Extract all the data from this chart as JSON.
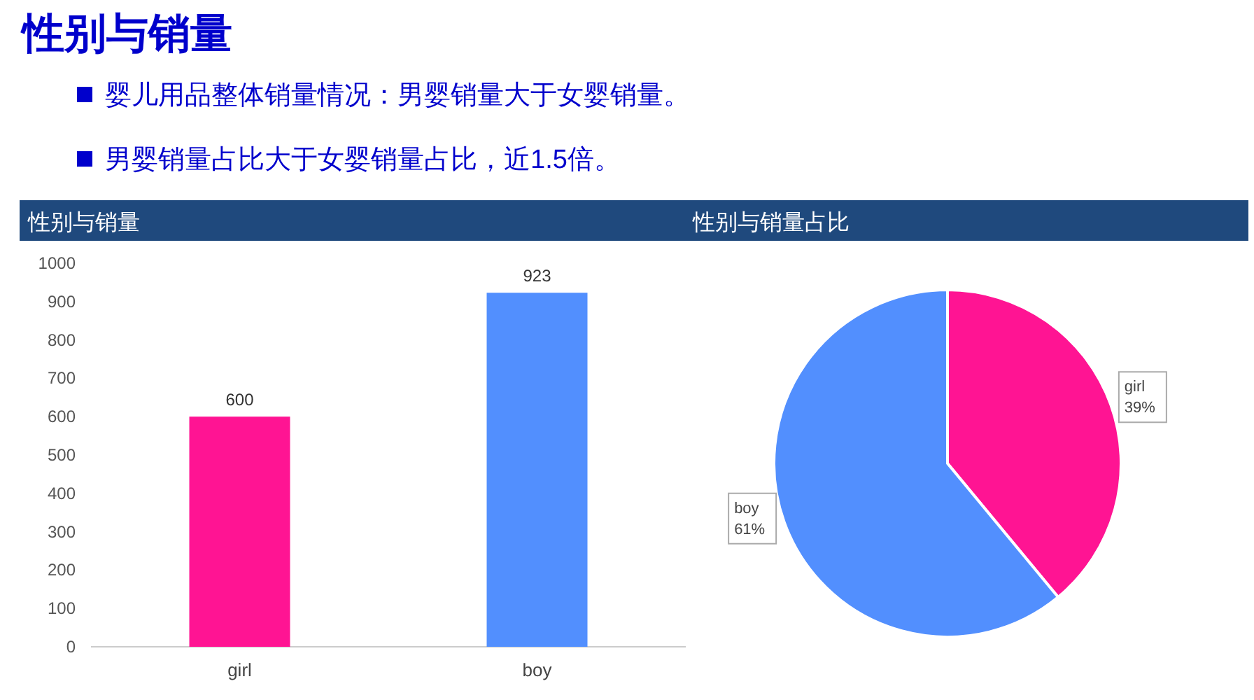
{
  "chart_data": [
    {
      "type": "other",
      "title": "性别与销量",
      "annotations": [
        "婴儿用品整体销量情况：男婴销量大于女婴销量。",
        "男婴销量占比大于女婴销量占比，近1.5倍。"
      ]
    },
    {
      "type": "bar",
      "title": "性别与销量",
      "categories": [
        "girl",
        "boy"
      ],
      "values": [
        600,
        923
      ],
      "colors": [
        "#ff1493",
        "#528ffe"
      ],
      "ylim": [
        0,
        1000
      ],
      "yticks": [
        0,
        100,
        200,
        300,
        400,
        500,
        600,
        700,
        800,
        900,
        1000
      ],
      "data_labels": true,
      "grid": false
    },
    {
      "type": "pie",
      "title": "性别与销量占比",
      "categories": [
        "girl",
        "boy"
      ],
      "values": [
        39,
        61
      ],
      "value_labels": [
        "39%",
        "61%"
      ],
      "colors": [
        "#ff1493",
        "#528ffe"
      ]
    }
  ]
}
